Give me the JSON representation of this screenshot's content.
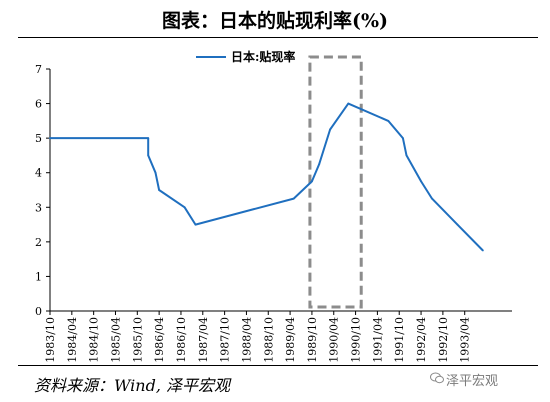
{
  "title": "图表：日本的贴现利率(%)",
  "source": "资料来源：Wind, 泽平宏观",
  "watermark": "泽平宏观",
  "colors": {
    "series": "#1f6fbf",
    "highlight": "#8c8c8c",
    "axis": "#000000"
  },
  "chart_data": {
    "type": "line",
    "xlabel": "",
    "ylabel": "",
    "ylim": [
      0,
      7
    ],
    "yticks": [
      0,
      1,
      2,
      3,
      4,
      5,
      6,
      7
    ],
    "xlim": [
      "1983-10",
      "1994-05"
    ],
    "xticks": [
      "1983/10",
      "1984/04",
      "1984/10",
      "1985/04",
      "1985/10",
      "1986/04",
      "1986/10",
      "1987/04",
      "1987/10",
      "1988/04",
      "1988/10",
      "1989/04",
      "1989/10",
      "1990/04",
      "1990/10",
      "1991/04",
      "1991/10",
      "1992/04",
      "1992/10",
      "1993/04"
    ],
    "grid": false,
    "legend_position": "top",
    "series": [
      {
        "name": "日本:贴现率",
        "points": [
          [
            "1983-10",
            5.0
          ],
          [
            "1986-01",
            5.0
          ],
          [
            "1986-01",
            4.5
          ],
          [
            "1986-03",
            4.0
          ],
          [
            "1986-04",
            3.5
          ],
          [
            "1986-11",
            3.0
          ],
          [
            "1987-02",
            2.5
          ],
          [
            "1989-05",
            3.25
          ],
          [
            "1989-10",
            3.75
          ],
          [
            "1989-12",
            4.25
          ],
          [
            "1990-03",
            5.25
          ],
          [
            "1990-08",
            6.0
          ],
          [
            "1991-07",
            5.5
          ],
          [
            "1991-11",
            5.0
          ],
          [
            "1991-12",
            4.5
          ],
          [
            "1992-04",
            3.75
          ],
          [
            "1992-07",
            3.25
          ],
          [
            "1993-02",
            2.5
          ],
          [
            "1993-09",
            1.75
          ]
        ]
      }
    ],
    "highlight_period": [
      "1989-10",
      "1990-11"
    ]
  }
}
